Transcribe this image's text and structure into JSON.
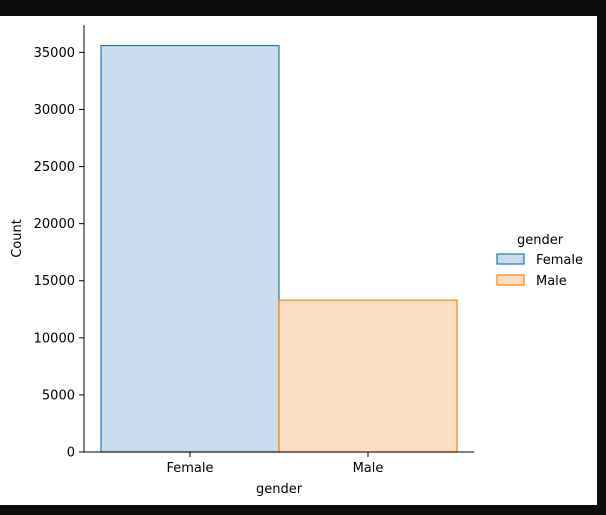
{
  "chart_data": {
    "type": "bar",
    "title": "",
    "xlabel": "gender",
    "ylabel": "Count",
    "categories": [
      "Female",
      "Male"
    ],
    "values": [
      35600,
      13300
    ],
    "ylim": [
      0,
      37400
    ],
    "yticks": [
      0,
      5000,
      10000,
      15000,
      20000,
      25000,
      30000,
      35000
    ],
    "grid": false,
    "legend": {
      "title": "gender",
      "placement": "center-right",
      "entries": [
        "Female",
        "Male"
      ]
    },
    "colors": {
      "Female": {
        "fill": "#c9dcee",
        "edge": "#1f77b4"
      },
      "Male": {
        "fill": "#fbdfc3",
        "edge": "#ff7f0e"
      }
    }
  }
}
